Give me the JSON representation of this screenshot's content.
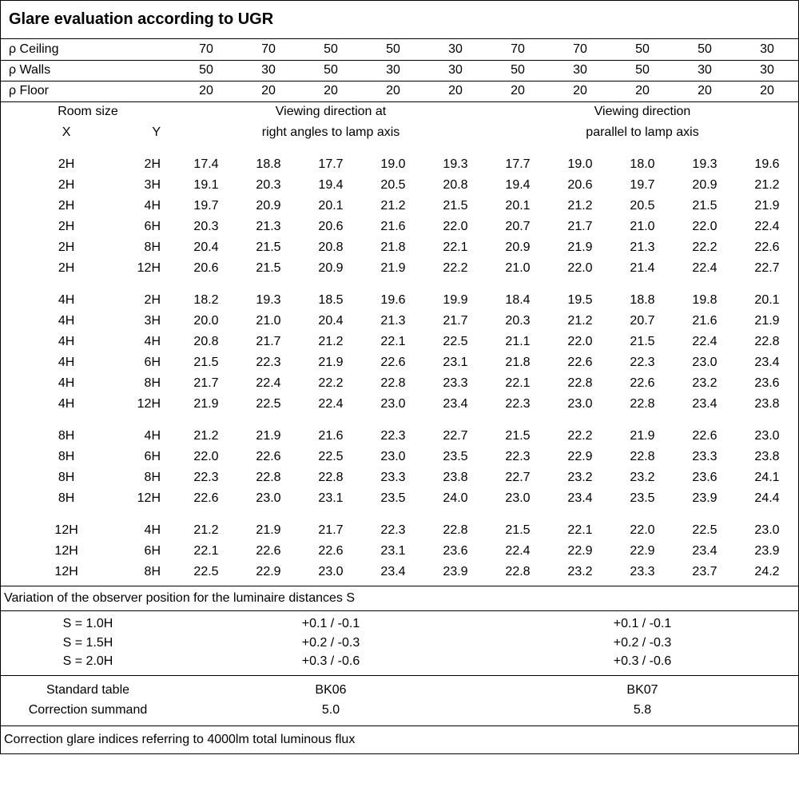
{
  "title": "Glare evaluation according to UGR",
  "rho_labels": {
    "ceiling": "ρ Ceiling",
    "walls": "ρ Walls",
    "floor": "ρ Floor"
  },
  "rho": {
    "ceiling": [
      "70",
      "70",
      "50",
      "50",
      "30",
      "70",
      "70",
      "50",
      "50",
      "30"
    ],
    "walls": [
      "50",
      "30",
      "50",
      "30",
      "30",
      "50",
      "30",
      "50",
      "30",
      "30"
    ],
    "floor": [
      "20",
      "20",
      "20",
      "20",
      "20",
      "20",
      "20",
      "20",
      "20",
      "20"
    ]
  },
  "room_size_header": {
    "line1": "Room size",
    "x": "X",
    "y": "Y"
  },
  "view_headers": {
    "right1": "Viewing direction at",
    "right2": "right angles to lamp axis",
    "par1": "Viewing direction",
    "par2": "parallel to lamp axis"
  },
  "groups": [
    {
      "rows": [
        {
          "x": "2H",
          "y": "2H",
          "v": [
            "17.4",
            "18.8",
            "17.7",
            "19.0",
            "19.3",
            "17.7",
            "19.0",
            "18.0",
            "19.3",
            "19.6"
          ]
        },
        {
          "x": "2H",
          "y": "3H",
          "v": [
            "19.1",
            "20.3",
            "19.4",
            "20.5",
            "20.8",
            "19.4",
            "20.6",
            "19.7",
            "20.9",
            "21.2"
          ]
        },
        {
          "x": "2H",
          "y": "4H",
          "v": [
            "19.7",
            "20.9",
            "20.1",
            "21.2",
            "21.5",
            "20.1",
            "21.2",
            "20.5",
            "21.5",
            "21.9"
          ]
        },
        {
          "x": "2H",
          "y": "6H",
          "v": [
            "20.3",
            "21.3",
            "20.6",
            "21.6",
            "22.0",
            "20.7",
            "21.7",
            "21.0",
            "22.0",
            "22.4"
          ]
        },
        {
          "x": "2H",
          "y": "8H",
          "v": [
            "20.4",
            "21.5",
            "20.8",
            "21.8",
            "22.1",
            "20.9",
            "21.9",
            "21.3",
            "22.2",
            "22.6"
          ]
        },
        {
          "x": "2H",
          "y": "12H",
          "v": [
            "20.6",
            "21.5",
            "20.9",
            "21.9",
            "22.2",
            "21.0",
            "22.0",
            "21.4",
            "22.4",
            "22.7"
          ]
        }
      ]
    },
    {
      "rows": [
        {
          "x": "4H",
          "y": "2H",
          "v": [
            "18.2",
            "19.3",
            "18.5",
            "19.6",
            "19.9",
            "18.4",
            "19.5",
            "18.8",
            "19.8",
            "20.1"
          ]
        },
        {
          "x": "4H",
          "y": "3H",
          "v": [
            "20.0",
            "21.0",
            "20.4",
            "21.3",
            "21.7",
            "20.3",
            "21.2",
            "20.7",
            "21.6",
            "21.9"
          ]
        },
        {
          "x": "4H",
          "y": "4H",
          "v": [
            "20.8",
            "21.7",
            "21.2",
            "22.1",
            "22.5",
            "21.1",
            "22.0",
            "21.5",
            "22.4",
            "22.8"
          ]
        },
        {
          "x": "4H",
          "y": "6H",
          "v": [
            "21.5",
            "22.3",
            "21.9",
            "22.6",
            "23.1",
            "21.8",
            "22.6",
            "22.3",
            "23.0",
            "23.4"
          ]
        },
        {
          "x": "4H",
          "y": "8H",
          "v": [
            "21.7",
            "22.4",
            "22.2",
            "22.8",
            "23.3",
            "22.1",
            "22.8",
            "22.6",
            "23.2",
            "23.6"
          ]
        },
        {
          "x": "4H",
          "y": "12H",
          "v": [
            "21.9",
            "22.5",
            "22.4",
            "23.0",
            "23.4",
            "22.3",
            "23.0",
            "22.8",
            "23.4",
            "23.8"
          ]
        }
      ]
    },
    {
      "rows": [
        {
          "x": "8H",
          "y": "4H",
          "v": [
            "21.2",
            "21.9",
            "21.6",
            "22.3",
            "22.7",
            "21.5",
            "22.2",
            "21.9",
            "22.6",
            "23.0"
          ]
        },
        {
          "x": "8H",
          "y": "6H",
          "v": [
            "22.0",
            "22.6",
            "22.5",
            "23.0",
            "23.5",
            "22.3",
            "22.9",
            "22.8",
            "23.3",
            "23.8"
          ]
        },
        {
          "x": "8H",
          "y": "8H",
          "v": [
            "22.3",
            "22.8",
            "22.8",
            "23.3",
            "23.8",
            "22.7",
            "23.2",
            "23.2",
            "23.6",
            "24.1"
          ]
        },
        {
          "x": "8H",
          "y": "12H",
          "v": [
            "22.6",
            "23.0",
            "23.1",
            "23.5",
            "24.0",
            "23.0",
            "23.4",
            "23.5",
            "23.9",
            "24.4"
          ]
        }
      ]
    },
    {
      "rows": [
        {
          "x": "12H",
          "y": "4H",
          "v": [
            "21.2",
            "21.9",
            "21.7",
            "22.3",
            "22.8",
            "21.5",
            "22.1",
            "22.0",
            "22.5",
            "23.0"
          ]
        },
        {
          "x": "12H",
          "y": "6H",
          "v": [
            "22.1",
            "22.6",
            "22.6",
            "23.1",
            "23.6",
            "22.4",
            "22.9",
            "22.9",
            "23.4",
            "23.9"
          ]
        },
        {
          "x": "12H",
          "y": "8H",
          "v": [
            "22.5",
            "22.9",
            "23.0",
            "23.4",
            "23.9",
            "22.8",
            "23.2",
            "23.3",
            "23.7",
            "24.2"
          ]
        }
      ]
    }
  ],
  "variation_label": "Variation of the observer position for the luminaire distances S",
  "s_rows": [
    {
      "label": "S = 1.0H",
      "right": "+0.1 / -0.1",
      "par": "+0.1 / -0.1"
    },
    {
      "label": "S = 1.5H",
      "right": "+0.2 / -0.3",
      "par": "+0.2 / -0.3"
    },
    {
      "label": "S = 2.0H",
      "right": "+0.3 / -0.6",
      "par": "+0.3 / -0.6"
    }
  ],
  "std": {
    "table_label": "Standard table",
    "summand_label": "Correction summand",
    "table_right": "BK06",
    "table_par": "BK07",
    "summand_right": "5.0",
    "summand_par": "5.8"
  },
  "footer": "Correction glare indices referring to 4000lm total luminous flux"
}
